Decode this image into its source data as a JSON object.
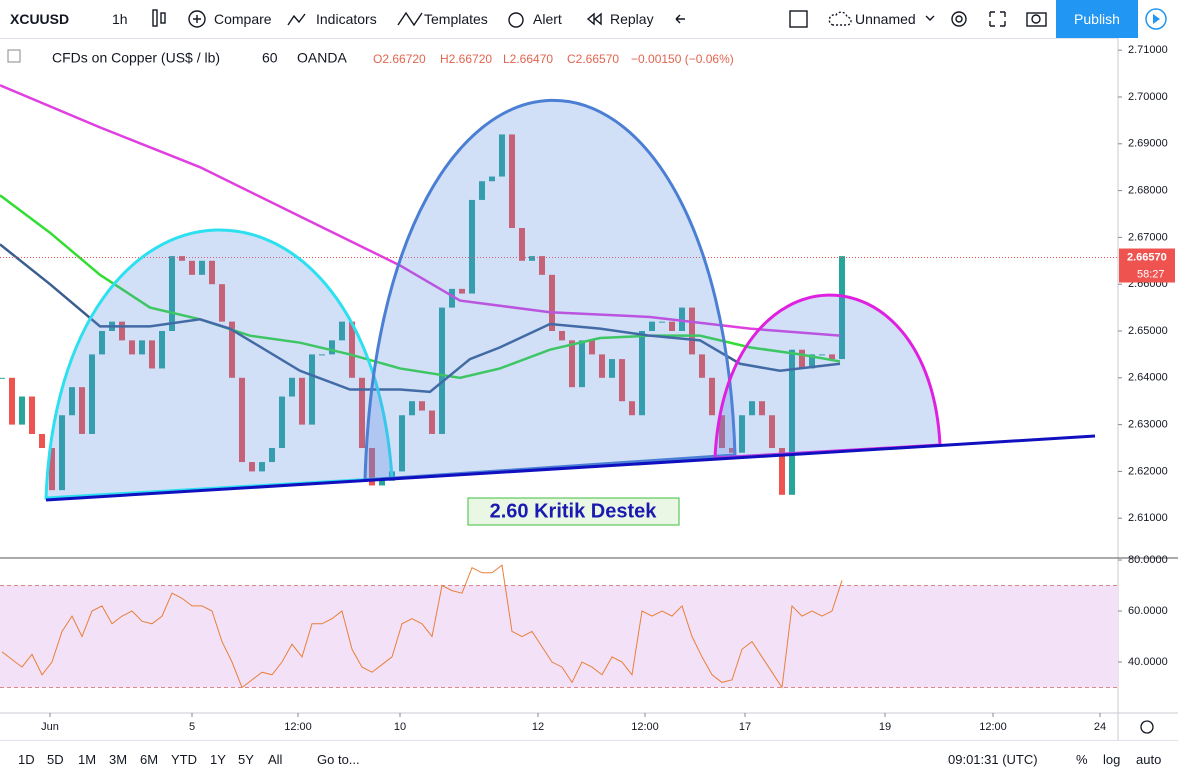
{
  "toolbar": {
    "symbol": "XCUUSD",
    "interval": "1h",
    "compare": "Compare",
    "indicators": "Indicators",
    "templates": "Templates",
    "alert": "Alert",
    "replay": "Replay",
    "layout": "Unnamed",
    "publish": "Publish"
  },
  "legend": {
    "name": "CFDs on Copper (US$ / lb)",
    "interval": "60",
    "source": "OANDA",
    "open": "O2.66720",
    "high": "H2.66720",
    "low": "L2.66470",
    "close": "C2.66570",
    "change": "−0.00150 (−0.06%)"
  },
  "bottom_bar": {
    "ranges": [
      "1D",
      "5D",
      "1M",
      "3M",
      "6M",
      "YTD",
      "1Y",
      "5Y",
      "All"
    ],
    "goto": "Go to...",
    "clock": "09:01:31 (UTC)",
    "percent": "%",
    "log": "log",
    "auto": "auto"
  },
  "chart_data": [
    {
      "type": "candlestick",
      "annotation": "2.60 Kritik Destek",
      "up_color": "#26a69a",
      "down_color": "#ef5350",
      "x": [
        0,
        1,
        2,
        3,
        4,
        5,
        6,
        7,
        8,
        9,
        10,
        11,
        12,
        13,
        14,
        15,
        16,
        17,
        18,
        19,
        20,
        21,
        22,
        23,
        24,
        25,
        26,
        27,
        28,
        29,
        30,
        31,
        32,
        33,
        34,
        35,
        36,
        37,
        38,
        39,
        40,
        41,
        42,
        43,
        44,
        45,
        46,
        47,
        48,
        49,
        50,
        51,
        52,
        53,
        54,
        55,
        56,
        57,
        58,
        59,
        60,
        61,
        62,
        63,
        64,
        65,
        66,
        67,
        68,
        69,
        70,
        71,
        72,
        73,
        74,
        75,
        76,
        77,
        78,
        79,
        80,
        81,
        82,
        83,
        84
      ],
      "close": [
        2.64,
        2.63,
        2.636,
        2.628,
        2.625,
        2.616,
        2.632,
        2.638,
        2.628,
        2.645,
        2.65,
        2.652,
        2.648,
        2.645,
        2.648,
        2.642,
        2.65,
        2.666,
        2.665,
        2.662,
        2.665,
        2.66,
        2.652,
        2.64,
        2.622,
        2.62,
        2.622,
        2.625,
        2.636,
        2.64,
        2.63,
        2.645,
        2.645,
        2.648,
        2.652,
        2.64,
        2.625,
        2.617,
        2.618,
        2.62,
        2.632,
        2.635,
        2.633,
        2.628,
        2.655,
        2.659,
        2.658,
        2.678,
        2.682,
        2.683,
        2.692,
        2.672,
        2.665,
        2.666,
        2.662,
        2.65,
        2.648,
        2.638,
        2.648,
        2.645,
        2.64,
        2.644,
        2.635,
        2.632,
        2.65,
        2.652,
        2.652,
        2.65,
        2.655,
        2.645,
        2.64,
        2.632,
        2.625,
        2.624,
        2.632,
        2.635,
        2.632,
        2.625,
        2.615,
        2.646,
        2.642,
        2.645,
        2.645,
        2.644,
        2.666
      ],
      "series": [
        {
          "color": "#e040e0",
          "x": [
            -0.2,
            9.8,
            19.8,
            29.8,
            39.8,
            45.8,
            54.8,
            64.8,
            74.8,
            83.8
          ],
          "values": [
            2.7025,
            2.6935,
            2.685,
            2.6745,
            2.664,
            2.6565,
            2.654,
            2.653,
            2.6505,
            2.649
          ]
        },
        {
          "color": "#33dd33",
          "x": [
            -0.2,
            4.8,
            9.8,
            14.8,
            19.8,
            24.8,
            29.8,
            34.8,
            39.8,
            45.8,
            49.8,
            54.8,
            59.8,
            64.8,
            69.8,
            74.8,
            79.8,
            83.8
          ],
          "values": [
            2.679,
            2.671,
            2.662,
            2.655,
            2.6525,
            2.649,
            2.6475,
            2.645,
            2.642,
            2.64,
            2.642,
            2.646,
            2.6485,
            2.649,
            2.649,
            2.6465,
            2.645,
            2.6435
          ]
        },
        {
          "color": "#3a5f8f",
          "x": [
            -0.2,
            4.8,
            9.8,
            14.8,
            19.8,
            22.8,
            29.8,
            34.8,
            39.8,
            42.8,
            46.8,
            49.8,
            54.8,
            59.8,
            64.8,
            69.8,
            73.8,
            77.8,
            83.8
          ],
          "values": [
            2.6685,
            2.66,
            2.651,
            2.651,
            2.6525,
            2.6505,
            2.6415,
            2.6375,
            2.6375,
            2.637,
            2.644,
            2.6465,
            2.6515,
            2.6505,
            2.649,
            2.648,
            2.643,
            2.6415,
            2.643
          ]
        }
      ],
      "last_price": {
        "value": 2.6657,
        "label": "2.66570"
      },
      "countdown": "58:27",
      "xlim": [
        -0.2,
        111.6
      ],
      "xticks": [
        {
          "value": 4.8,
          "label": "Jun"
        },
        {
          "value": 19,
          "label": "5"
        },
        {
          "value": 29.6,
          "label": "12:00"
        },
        {
          "value": 39.8,
          "label": "10"
        },
        {
          "value": 53.6,
          "label": "12"
        },
        {
          "value": 64.3,
          "label": "12:00"
        },
        {
          "value": 74.3,
          "label": "17"
        },
        {
          "value": 88.3,
          "label": "19"
        },
        {
          "value": 99.1,
          "label": "12:00"
        },
        {
          "value": 109.8,
          "label": "24"
        }
      ],
      "ylim": [
        2.6015,
        2.7126
      ],
      "yticks": [
        {
          "value": 2.61,
          "label": "2.61000"
        },
        {
          "value": 2.62,
          "label": "2.62000"
        },
        {
          "value": 2.63,
          "label": "2.63000"
        },
        {
          "value": 2.64,
          "label": "2.64000"
        },
        {
          "value": 2.65,
          "label": "2.65000"
        },
        {
          "value": 2.66,
          "label": "2.66000"
        },
        {
          "value": 2.67,
          "label": "2.67000"
        },
        {
          "value": 2.68,
          "label": "2.68000"
        },
        {
          "value": 2.69,
          "label": "2.69000"
        },
        {
          "value": 2.7,
          "label": "2.70000"
        },
        {
          "value": 2.71,
          "label": "2.71000"
        }
      ]
    },
    {
      "type": "line",
      "color": "#e8803a",
      "band": [
        30,
        70
      ],
      "band_color": "#f3e1f8",
      "values": [
        44,
        41,
        38,
        43,
        35,
        40,
        52,
        58,
        50,
        60,
        62,
        55,
        58,
        60,
        56,
        55,
        58,
        67,
        65,
        62,
        62,
        60,
        48,
        40,
        30,
        33,
        36,
        35,
        40,
        47,
        42,
        55,
        55,
        57,
        60,
        45,
        38,
        36,
        39,
        42,
        55,
        57,
        55,
        50,
        70,
        68,
        67,
        77,
        75,
        75,
        78,
        52,
        50,
        52,
        46,
        40,
        38,
        32,
        40,
        38,
        35,
        42,
        40,
        35,
        60,
        58,
        60,
        58,
        62,
        50,
        42,
        35,
        32,
        33,
        45,
        48,
        42,
        36,
        30,
        62,
        58,
        60,
        58,
        60,
        72
      ],
      "ylim": [
        20,
        80.8
      ],
      "yticks": [
        {
          "value": 40,
          "label": "40.0000"
        },
        {
          "value": 60,
          "label": "60.0000"
        },
        {
          "value": 80,
          "label": "80.0000"
        }
      ]
    }
  ]
}
